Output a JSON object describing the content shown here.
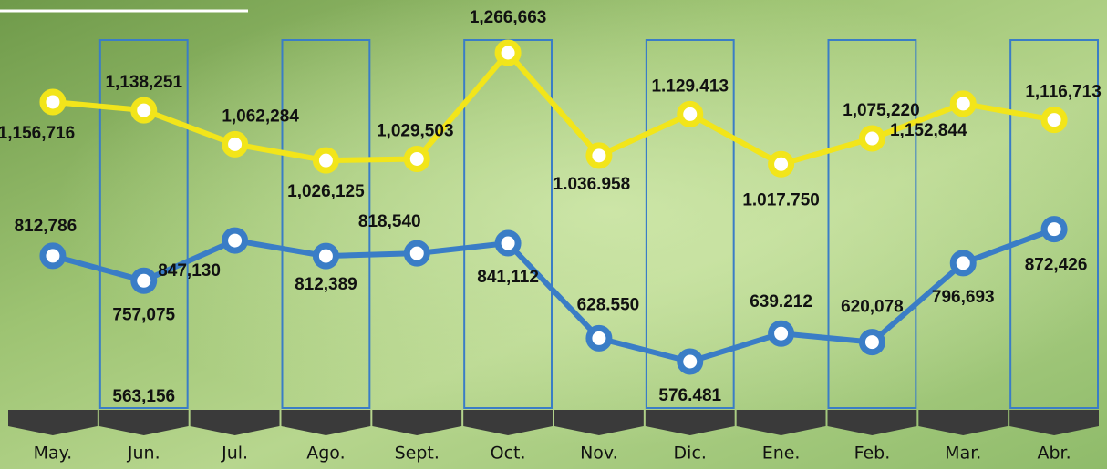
{
  "chart_data": {
    "type": "line",
    "categories": [
      "May.",
      "Jun.",
      "Jul.",
      "Ago.",
      "Sept.",
      "Oct.",
      "Nov.",
      "Dic.",
      "Ene.",
      "Feb.",
      "Mar.",
      "Abr."
    ],
    "series": [
      {
        "color": "#f2e51a",
        "values": [
          1156716,
          1138251,
          1062284,
          1026125,
          1029503,
          1266663,
          1036958,
          1129413,
          1017750,
          1075220,
          1152844,
          1116713
        ],
        "value_labels": [
          "1,156,716",
          "1,138,251",
          "1,062,284",
          "1,026,125",
          "1,029,503",
          "1,266,663",
          "1.036.958",
          "1.129.413",
          "1.017.750",
          "1,075,220",
          "1,152,844",
          "1,116,713"
        ]
      },
      {
        "color": "#3a7dc6",
        "values": [
          812786,
          757075,
          847130,
          812389,
          818540,
          841112,
          628550,
          576481,
          639212,
          620078,
          796693,
          872426
        ],
        "value_labels": [
          "812,786",
          "757,075",
          "847,130",
          "812,389",
          "818,540",
          "841,112",
          "628.550",
          "576.481",
          "639.212",
          "620,078",
          "796,693",
          "872,426"
        ]
      }
    ],
    "annotations": [
      "563,156"
    ]
  }
}
